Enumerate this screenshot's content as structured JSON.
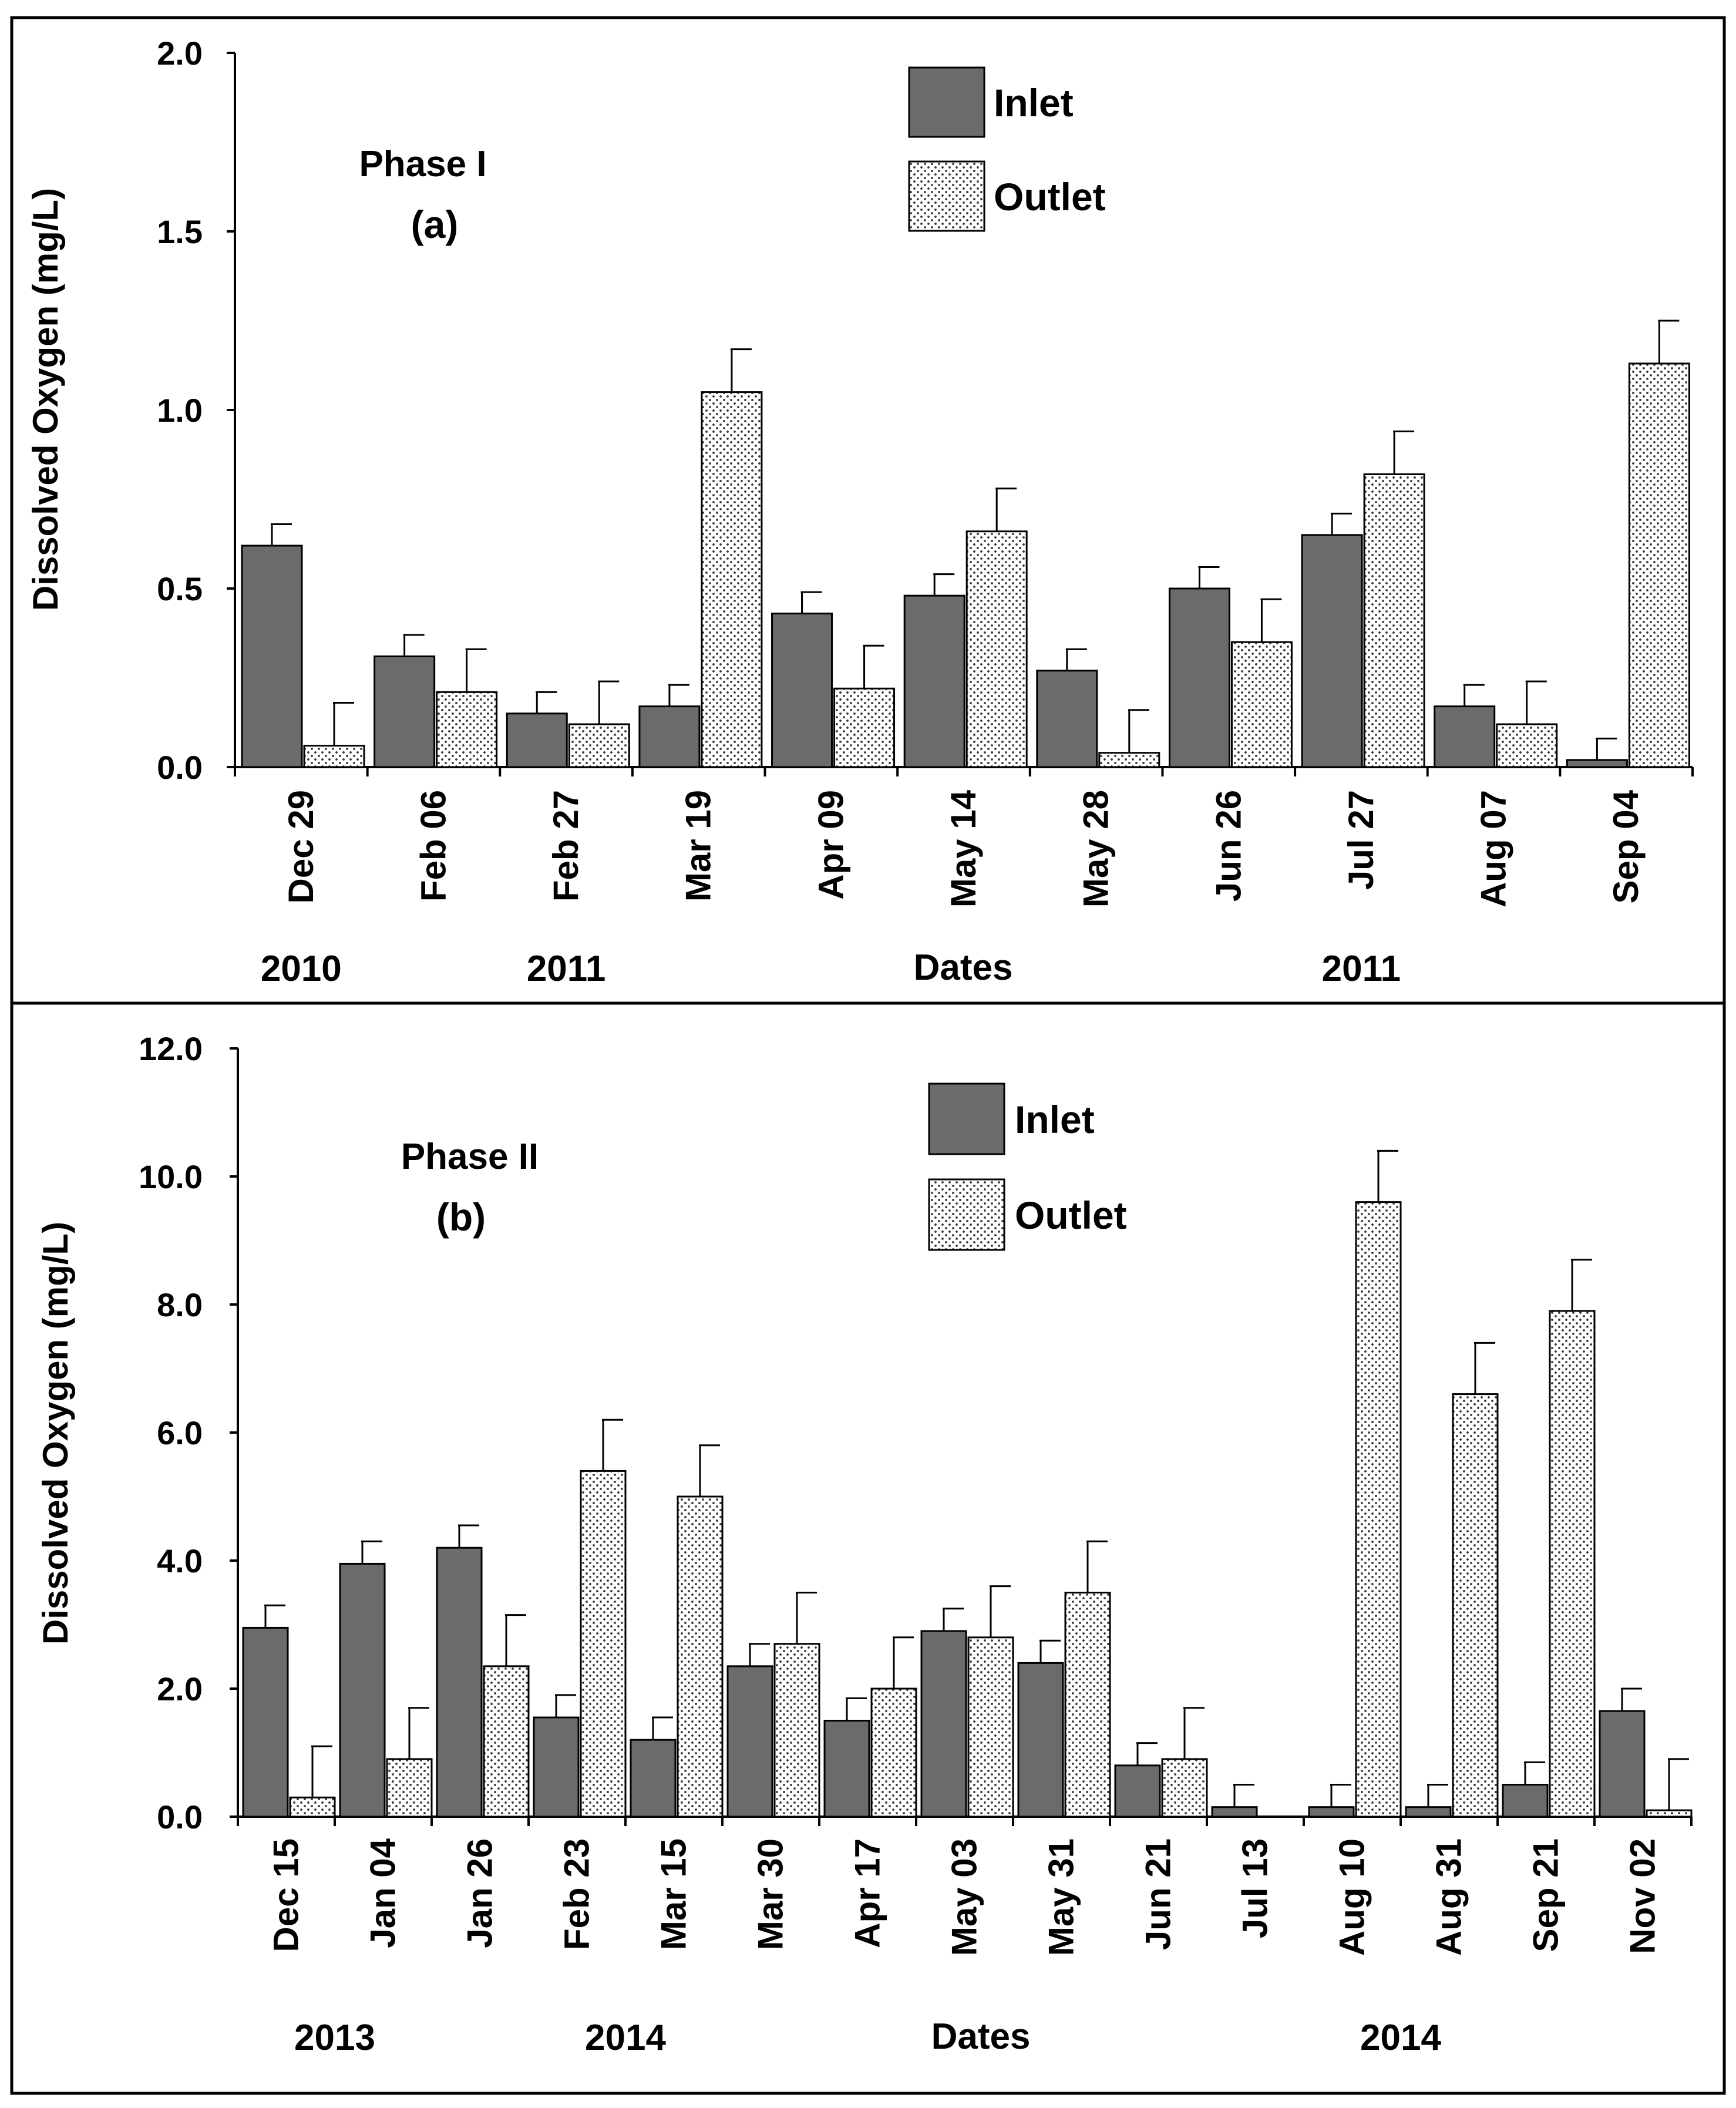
{
  "chart_data": [
    {
      "id": "panel-a",
      "type": "bar",
      "phase_label": "Phase I",
      "panel_label": "(a)",
      "ylabel": "Dissolved Oxygen (mg/L)",
      "xlabel": "Dates",
      "ylim": [
        0,
        2.0
      ],
      "yticks": [
        "0.0",
        "0.5",
        "1.0",
        "1.5",
        "2.0"
      ],
      "ytick_values": [
        0,
        0.5,
        1.0,
        1.5,
        2.0
      ],
      "categories": [
        "Dec 29",
        "Feb 06",
        "Feb 27",
        "Mar 19",
        "Apr 09",
        "May 14",
        "May 28",
        "Jun 26",
        "Jul 27",
        "Aug 07",
        "Sep 04"
      ],
      "series": [
        {
          "name": "Inlet",
          "pattern": "solid",
          "values": [
            0.62,
            0.31,
            0.15,
            0.17,
            0.43,
            0.48,
            0.27,
            0.5,
            0.65,
            0.17,
            0.02
          ],
          "errors": [
            0.06,
            0.06,
            0.06,
            0.06,
            0.06,
            0.06,
            0.06,
            0.06,
            0.06,
            0.06,
            0.06
          ]
        },
        {
          "name": "Outlet",
          "pattern": "dotted",
          "values": [
            0.06,
            0.21,
            0.12,
            1.05,
            0.22,
            0.66,
            0.04,
            0.35,
            0.82,
            0.12,
            1.13
          ],
          "errors": [
            0.12,
            0.12,
            0.12,
            0.12,
            0.12,
            0.12,
            0.12,
            0.12,
            0.12,
            0.12,
            0.12
          ]
        }
      ],
      "year_labels": [
        {
          "text": "2010",
          "at_category": 0
        },
        {
          "text": "2011",
          "at_category": 2
        },
        {
          "text": "2011",
          "at_category": 8
        }
      ]
    },
    {
      "id": "panel-b",
      "type": "bar",
      "phase_label": "Phase II",
      "panel_label": "(b)",
      "ylabel": "Dissolved Oxygen (mg/L)",
      "xlabel": "Dates",
      "ylim": [
        0,
        12.0
      ],
      "yticks": [
        "0.0",
        "2.0",
        "4.0",
        "6.0",
        "8.0",
        "10.0",
        "12.0"
      ],
      "ytick_values": [
        0,
        2,
        4,
        6,
        8,
        10,
        12
      ],
      "categories": [
        "Dec 15",
        "Jan 04",
        "Jan 26",
        "Feb 23",
        "Mar 15",
        "Mar 30",
        "Apr 17",
        "May 03",
        "May 31",
        "Jun 21",
        "Jul 13",
        "Aug 10",
        "Aug 31",
        "Sep 21",
        "Nov 02"
      ],
      "series": [
        {
          "name": "Inlet",
          "pattern": "solid",
          "values": [
            2.95,
            3.95,
            4.2,
            1.55,
            1.2,
            2.35,
            1.5,
            2.9,
            2.4,
            0.8,
            0.15,
            0.15,
            0.15,
            0.5,
            1.65
          ],
          "errors": [
            0.35,
            0.35,
            0.35,
            0.35,
            0.35,
            0.35,
            0.35,
            0.35,
            0.35,
            0.35,
            0.35,
            0.35,
            0.35,
            0.35,
            0.35
          ]
        },
        {
          "name": "Outlet",
          "pattern": "dotted",
          "values": [
            0.3,
            0.9,
            2.35,
            5.4,
            5.0,
            2.7,
            2.0,
            2.8,
            3.5,
            0.9,
            0.0,
            9.6,
            6.6,
            7.9,
            0.1
          ],
          "errors": [
            0.8,
            0.8,
            0.8,
            0.8,
            0.8,
            0.8,
            0.8,
            0.8,
            0.8,
            0.8,
            0.0,
            0.8,
            0.8,
            0.8,
            0.8
          ]
        }
      ],
      "year_labels": [
        {
          "text": "2013",
          "at_category": 0.5
        },
        {
          "text": "2014",
          "at_category": 3.5
        },
        {
          "text": "2014",
          "at_category": 11.5
        }
      ]
    }
  ]
}
